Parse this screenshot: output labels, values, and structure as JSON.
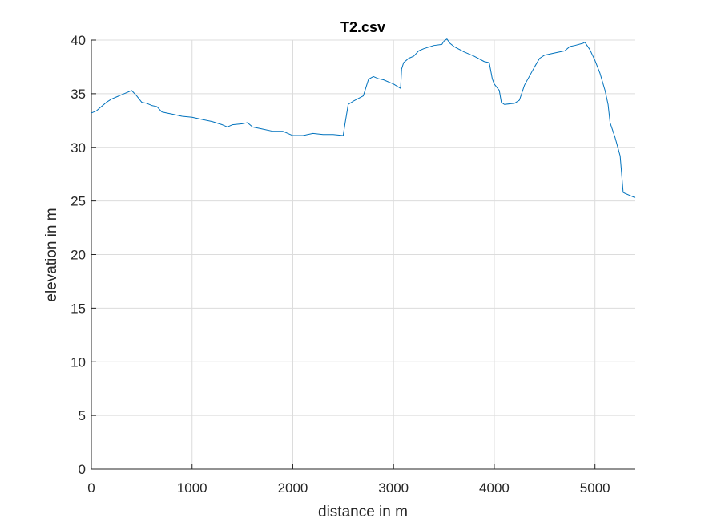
{
  "chart_data": {
    "type": "line",
    "title": "T2.csv",
    "xlabel": "distance in m",
    "ylabel": "elevation in m",
    "xlim": [
      0,
      5400
    ],
    "ylim": [
      0,
      40
    ],
    "xticks": [
      0,
      1000,
      2000,
      3000,
      4000,
      5000
    ],
    "yticks": [
      0,
      5,
      10,
      15,
      20,
      25,
      30,
      35,
      40
    ],
    "xtick_labels": [
      "0",
      "1000",
      "2000",
      "3000",
      "4000",
      "5000"
    ],
    "ytick_labels": [
      "0",
      "5",
      "10",
      "15",
      "20",
      "25",
      "30",
      "35",
      "40"
    ],
    "grid": true,
    "series": [
      {
        "color": "#0072bd",
        "x": [
          0,
          50,
          100,
          150,
          200,
          250,
          300,
          350,
          400,
          450,
          500,
          550,
          600,
          650,
          700,
          750,
          800,
          900,
          1000,
          1100,
          1200,
          1300,
          1350,
          1400,
          1500,
          1550,
          1600,
          1700,
          1800,
          1900,
          2000,
          2100,
          2200,
          2300,
          2400,
          2500,
          2520,
          2550,
          2600,
          2700,
          2750,
          2760,
          2800,
          2850,
          2900,
          3000,
          3070,
          3080,
          3100,
          3150,
          3200,
          3250,
          3300,
          3400,
          3480,
          3500,
          3530,
          3560,
          3600,
          3700,
          3800,
          3900,
          3950,
          3980,
          4000,
          4050,
          4070,
          4100,
          4200,
          4250,
          4300,
          4400,
          4450,
          4500,
          4600,
          4700,
          4750,
          4800,
          4880,
          4900,
          4950,
          5000,
          5050,
          5100,
          5130,
          5150,
          5200,
          5250,
          5280,
          5300,
          5350,
          5400
        ],
        "y": [
          33.2,
          33.4,
          33.8,
          34.2,
          34.5,
          34.7,
          34.9,
          35.1,
          35.3,
          34.8,
          34.2,
          34.1,
          33.9,
          33.8,
          33.3,
          33.2,
          33.1,
          32.9,
          32.8,
          32.6,
          32.4,
          32.1,
          31.9,
          32.1,
          32.2,
          32.3,
          31.9,
          31.7,
          31.5,
          31.5,
          31.1,
          31.1,
          31.3,
          31.2,
          31.2,
          31.1,
          32.3,
          34.0,
          34.3,
          34.8,
          36.3,
          36.4,
          36.6,
          36.4,
          36.3,
          35.9,
          35.5,
          37.3,
          37.9,
          38.3,
          38.5,
          39.0,
          39.2,
          39.5,
          39.6,
          39.9,
          40.1,
          39.7,
          39.4,
          38.9,
          38.5,
          38.0,
          37.9,
          36.4,
          35.9,
          35.3,
          34.2,
          34.0,
          34.1,
          34.4,
          35.8,
          37.5,
          38.3,
          38.6,
          38.8,
          39.0,
          39.4,
          39.5,
          39.7,
          39.8,
          39.1,
          38.1,
          36.9,
          35.3,
          34.0,
          32.3,
          30.9,
          29.2,
          25.8,
          25.7,
          25.5,
          25.3
        ]
      }
    ]
  }
}
